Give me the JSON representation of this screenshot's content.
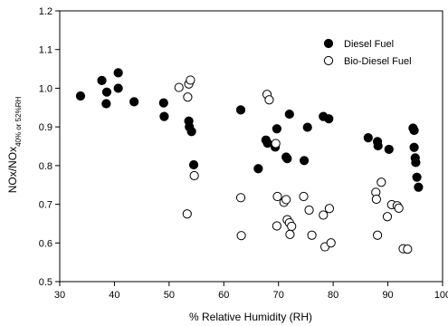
{
  "chart_data": {
    "type": "scatter",
    "title": "",
    "xlabel": "% Relative Humidity (RH)",
    "ylabel": {
      "main": "NOx/NOx",
      "subscript": "40% or 52%RH"
    },
    "xlim": [
      30,
      100
    ],
    "ylim": [
      0.5,
      1.2
    ],
    "xticks": [
      30,
      40,
      50,
      60,
      70,
      80,
      90,
      100
    ],
    "yticks": [
      0.5,
      0.6,
      0.7,
      0.8,
      0.9,
      1.0,
      1.1,
      1.2
    ],
    "xtick_labels": [
      "30",
      "40",
      "50",
      "60",
      "70",
      "80",
      "90",
      "100"
    ],
    "ytick_labels": [
      "0.5",
      "0.6",
      "0.7",
      "0.8",
      "0.9",
      "1.0",
      "1.1",
      "1.2"
    ],
    "grid": false,
    "legend_position": "top-right",
    "series": [
      {
        "name": "Diesel Fuel",
        "marker": "filled-circle",
        "color": "#000000",
        "points": [
          [
            33.8,
            0.98
          ],
          [
            37.7,
            1.02
          ],
          [
            38.5,
            0.96
          ],
          [
            38.6,
            0.99
          ],
          [
            40.7,
            1.04
          ],
          [
            40.7,
            1.0
          ],
          [
            43.6,
            0.965
          ],
          [
            49.0,
            0.962
          ],
          [
            49.1,
            0.927
          ],
          [
            53.6,
            0.915
          ],
          [
            53.7,
            0.9
          ],
          [
            54.1,
            0.888
          ],
          [
            54.5,
            0.802
          ],
          [
            63.1,
            0.944
          ],
          [
            66.3,
            0.792
          ],
          [
            67.7,
            0.866
          ],
          [
            68.0,
            0.858
          ],
          [
            69.4,
            0.848
          ],
          [
            69.7,
            0.895
          ],
          [
            71.4,
            0.822
          ],
          [
            71.6,
            0.818
          ],
          [
            72.0,
            0.933
          ],
          [
            74.7,
            0.813
          ],
          [
            75.3,
            0.899
          ],
          [
            78.2,
            0.927
          ],
          [
            79.2,
            0.921
          ],
          [
            86.4,
            0.872
          ],
          [
            88.1,
            0.862
          ],
          [
            88.2,
            0.851
          ],
          [
            90.2,
            0.842
          ],
          [
            94.6,
            0.897
          ],
          [
            94.8,
            0.891
          ],
          [
            94.8,
            0.847
          ],
          [
            95.0,
            0.82
          ],
          [
            95.1,
            0.808
          ],
          [
            95.3,
            0.77
          ],
          [
            95.6,
            0.744
          ]
        ]
      },
      {
        "name": "Bio-Diesel Fuel",
        "marker": "open-circle",
        "color": "#000000",
        "points": [
          [
            51.8,
            1.002
          ],
          [
            53.4,
            0.977
          ],
          [
            53.6,
            1.011
          ],
          [
            53.9,
            1.021
          ],
          [
            54.6,
            0.774
          ],
          [
            53.3,
            0.675
          ],
          [
            63.1,
            0.717
          ],
          [
            63.2,
            0.619
          ],
          [
            67.9,
            0.984
          ],
          [
            68.3,
            0.97
          ],
          [
            69.5,
            0.857
          ],
          [
            69.8,
            0.72
          ],
          [
            69.7,
            0.644
          ],
          [
            71.0,
            0.705
          ],
          [
            71.4,
            0.712
          ],
          [
            71.6,
            0.66
          ],
          [
            72.0,
            0.652
          ],
          [
            72.4,
            0.643
          ],
          [
            72.1,
            0.622
          ],
          [
            74.6,
            0.72
          ],
          [
            75.6,
            0.685
          ],
          [
            76.1,
            0.62
          ],
          [
            78.2,
            0.672
          ],
          [
            78.5,
            0.59
          ],
          [
            79.3,
            0.689
          ],
          [
            79.6,
            0.6
          ],
          [
            87.8,
            0.731
          ],
          [
            87.9,
            0.713
          ],
          [
            88.1,
            0.62
          ],
          [
            88.8,
            0.757
          ],
          [
            89.9,
            0.668
          ],
          [
            90.7,
            0.699
          ],
          [
            91.7,
            0.696
          ],
          [
            92.0,
            0.69
          ],
          [
            92.8,
            0.585
          ],
          [
            93.6,
            0.584
          ]
        ]
      }
    ]
  }
}
